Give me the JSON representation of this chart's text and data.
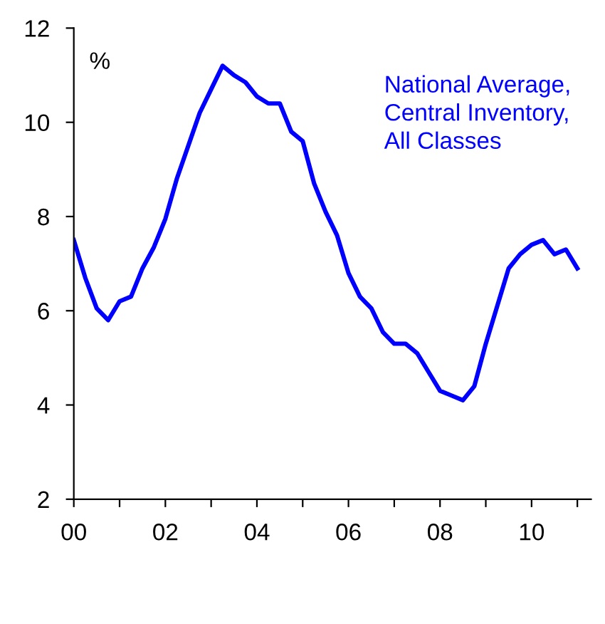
{
  "chart_data": {
    "type": "line",
    "ylabel": "%",
    "xlim": [
      2000,
      2011.3
    ],
    "ylim": [
      2,
      12
    ],
    "xticks": [
      {
        "value": 2000,
        "label": "00"
      },
      {
        "value": 2001,
        "label": null
      },
      {
        "value": 2002,
        "label": "02"
      },
      {
        "value": 2003,
        "label": null
      },
      {
        "value": 2004,
        "label": "04"
      },
      {
        "value": 2005,
        "label": null
      },
      {
        "value": 2006,
        "label": "06"
      },
      {
        "value": 2007,
        "label": null
      },
      {
        "value": 2008,
        "label": "08"
      },
      {
        "value": 2009,
        "label": null
      },
      {
        "value": 2010,
        "label": "10"
      },
      {
        "value": 2011,
        "label": null
      }
    ],
    "yticks": [
      2,
      4,
      6,
      8,
      10,
      12
    ],
    "grid": false,
    "legend": false,
    "marker": "none",
    "line_style": "solid",
    "series": [
      {
        "name": "National Average,\nCentral Inventory,\nAll Classes",
        "color": "#0000ff",
        "x": [
          2000,
          2000.25,
          2000.5,
          2000.75,
          2001,
          2001.25,
          2001.5,
          2001.75,
          2002,
          2002.25,
          2002.5,
          2002.75,
          2003,
          2003.25,
          2003.5,
          2003.75,
          2004,
          2004.25,
          2004.5,
          2004.75,
          2005,
          2005.25,
          2005.5,
          2005.75,
          2006,
          2006.25,
          2006.5,
          2006.75,
          2007,
          2007.25,
          2007.5,
          2007.75,
          2008,
          2008.25,
          2008.5,
          2008.75,
          2009,
          2009.25,
          2009.5,
          2009.75,
          2010,
          2010.25,
          2010.5,
          2010.75,
          2011
        ],
        "values": [
          7.5,
          6.7,
          6.05,
          5.8,
          6.2,
          6.3,
          6.9,
          7.35,
          7.95,
          8.8,
          9.5,
          10.2,
          10.7,
          11.2,
          11.0,
          10.85,
          10.55,
          10.4,
          10.4,
          9.8,
          9.6,
          8.7,
          8.1,
          7.6,
          6.8,
          6.3,
          6.05,
          5.55,
          5.3,
          5.3,
          5.1,
          4.7,
          4.3,
          4.2,
          4.1,
          4.4,
          5.3,
          6.1,
          6.9,
          7.2,
          7.4,
          7.5,
          7.2,
          7.3,
          6.9
        ]
      }
    ]
  }
}
